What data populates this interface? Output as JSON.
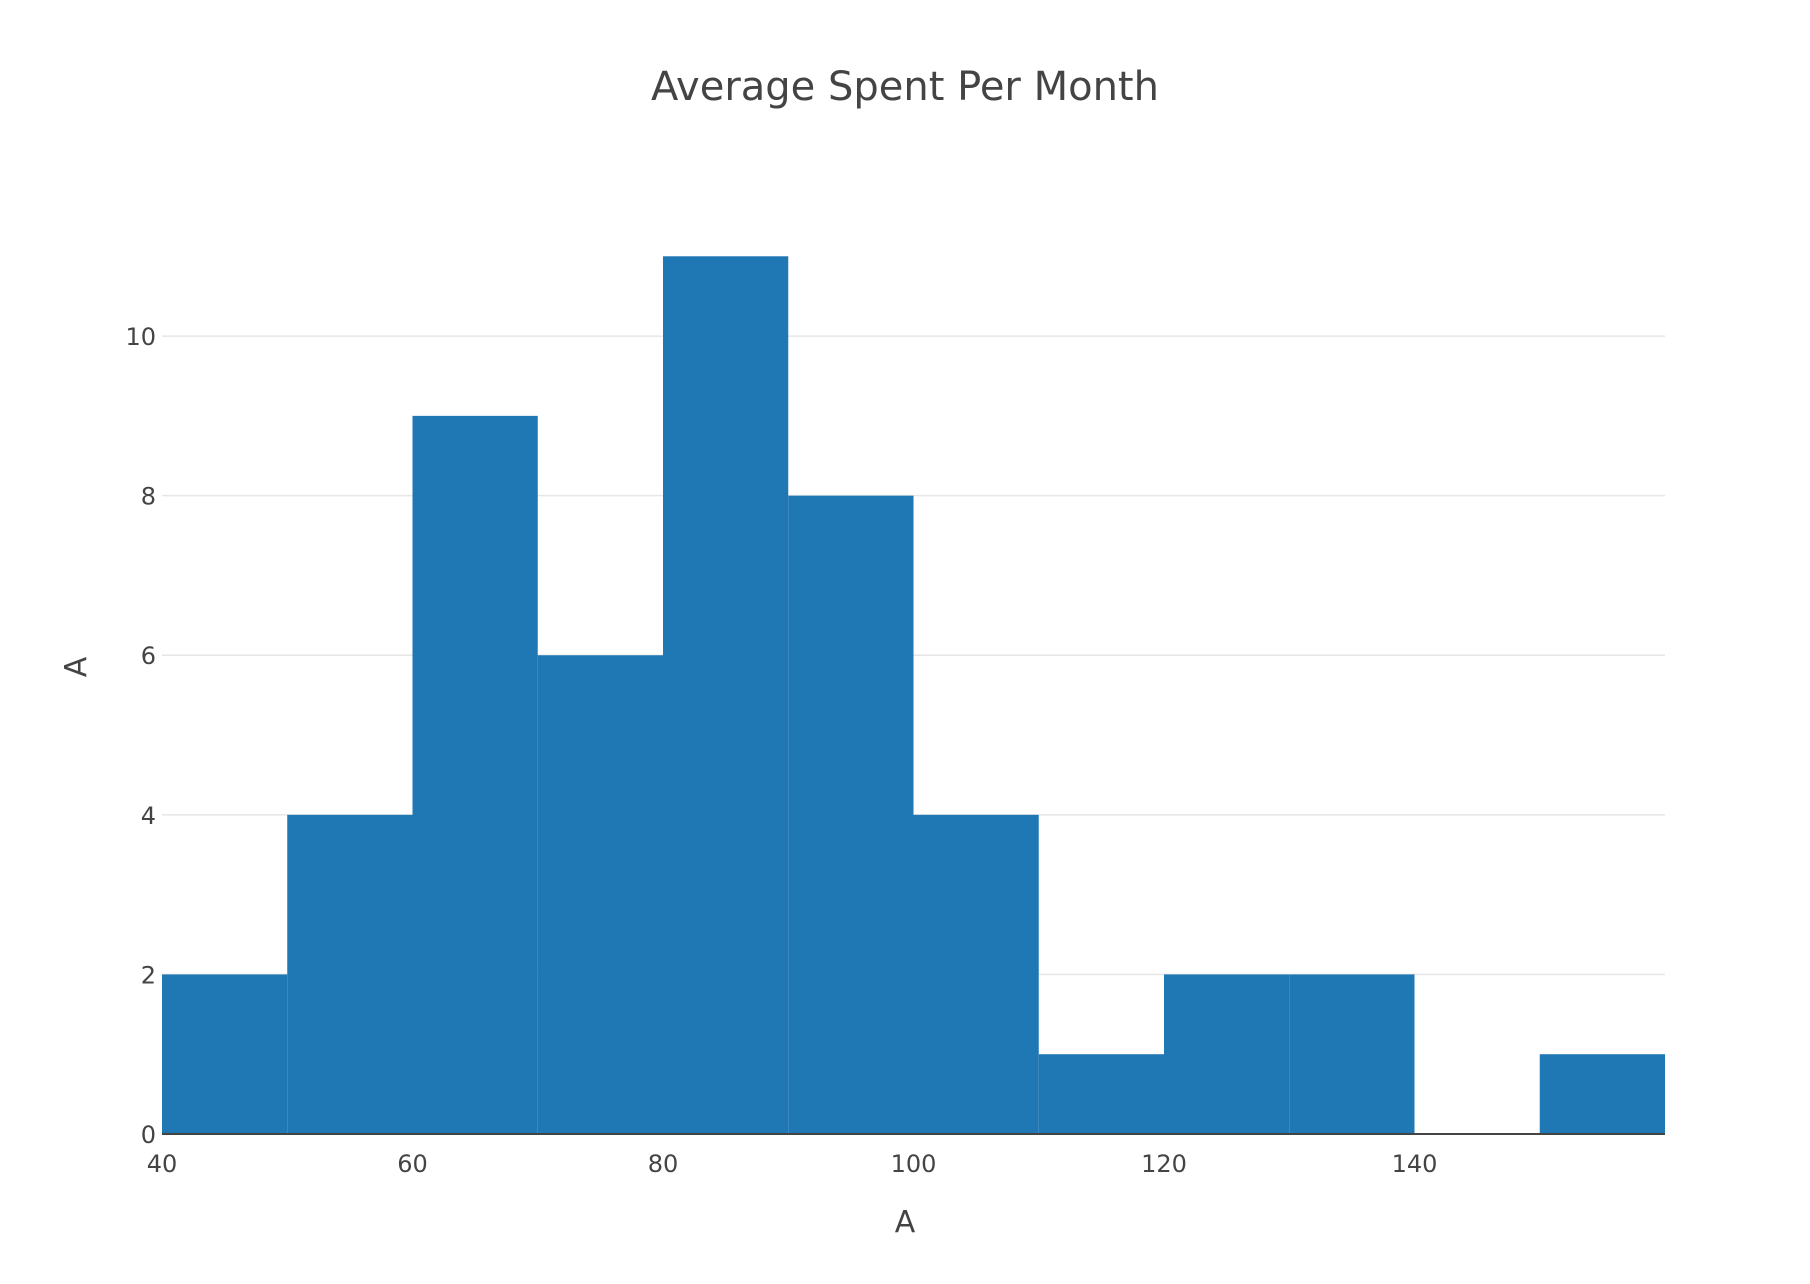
{
  "chart_data": {
    "type": "bar",
    "subtype": "histogram",
    "title": "Average Spent Per Month",
    "xlabel": "A",
    "ylabel": "A",
    "bin_size": 10,
    "bins": [
      {
        "start": 40,
        "end": 50,
        "count": 2
      },
      {
        "start": 50,
        "end": 60,
        "count": 4
      },
      {
        "start": 60,
        "end": 70,
        "count": 9
      },
      {
        "start": 70,
        "end": 80,
        "count": 6
      },
      {
        "start": 80,
        "end": 90,
        "count": 11
      },
      {
        "start": 90,
        "end": 100,
        "count": 8
      },
      {
        "start": 100,
        "end": 110,
        "count": 4
      },
      {
        "start": 110,
        "end": 120,
        "count": 1
      },
      {
        "start": 120,
        "end": 130,
        "count": 2
      },
      {
        "start": 130,
        "end": 140,
        "count": 2
      },
      {
        "start": 140,
        "end": 150,
        "count": 0
      },
      {
        "start": 150,
        "end": 160,
        "count": 1
      }
    ],
    "xlim": [
      40,
      160
    ],
    "ylim": [
      0,
      11.58
    ],
    "x_ticks": [
      "40",
      "60",
      "80",
      "100",
      "120",
      "140"
    ],
    "y_ticks": [
      "0",
      "2",
      "4",
      "6",
      "8",
      "10"
    ],
    "grid": true,
    "legend": "none",
    "bar_color": "#1f77b4"
  }
}
